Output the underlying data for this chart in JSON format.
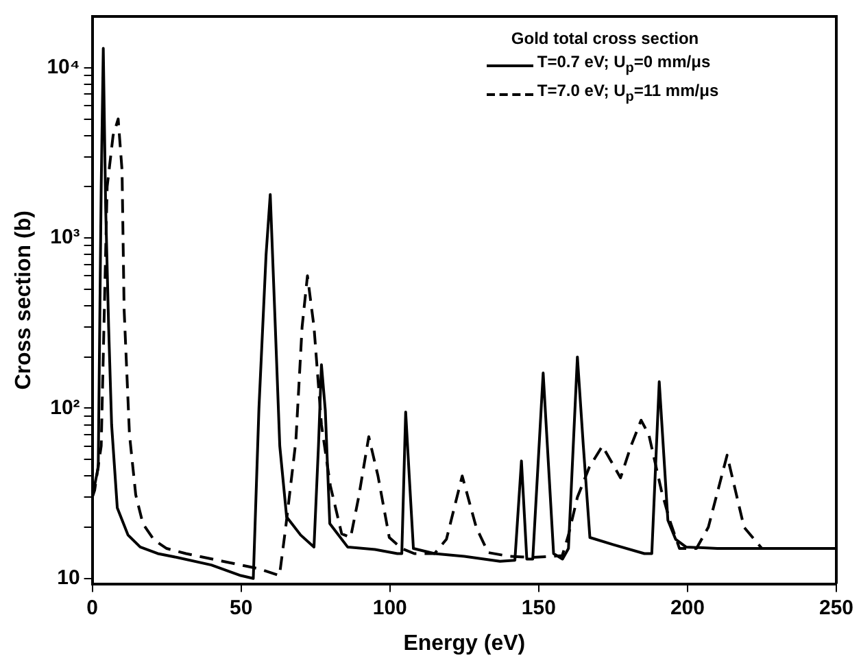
{
  "chart_data": {
    "type": "line",
    "xlabel": "Energy (eV)",
    "ylabel": "Cross section (b)",
    "legend_title": "Gold total cross section",
    "legend": "top right",
    "log": "y",
    "grid": false,
    "marker": "none",
    "xlim": [
      0,
      250
    ],
    "xticks": [
      0,
      50,
      100,
      150,
      200,
      250
    ],
    "ylim": [
      9.3,
      20000
    ],
    "yticks": [
      {
        "value": 10,
        "label": "10"
      },
      {
        "value": 20,
        "label": null
      },
      {
        "value": 30,
        "label": null
      },
      {
        "value": 40,
        "label": null
      },
      {
        "value": 50,
        "label": null
      },
      {
        "value": 60,
        "label": null
      },
      {
        "value": 70,
        "label": null
      },
      {
        "value": 80,
        "label": null
      },
      {
        "value": 90,
        "label": null
      },
      {
        "value": 100,
        "label": "10²"
      },
      {
        "value": 200,
        "label": null
      },
      {
        "value": 300,
        "label": null
      },
      {
        "value": 400,
        "label": null
      },
      {
        "value": 500,
        "label": null
      },
      {
        "value": 600,
        "label": null
      },
      {
        "value": 700,
        "label": null
      },
      {
        "value": 800,
        "label": null
      },
      {
        "value": 900,
        "label": null
      },
      {
        "value": 1000,
        "label": "10³"
      },
      {
        "value": 2000,
        "label": null
      },
      {
        "value": 3000,
        "label": null
      },
      {
        "value": 4000,
        "label": null
      },
      {
        "value": 5000,
        "label": null
      },
      {
        "value": 6000,
        "label": null
      },
      {
        "value": 7000,
        "label": null
      },
      {
        "value": 8000,
        "label": null
      },
      {
        "value": 9000,
        "label": null
      },
      {
        "value": 10000,
        "label": "10⁴"
      }
    ],
    "series": [
      {
        "name": "T=0.7 eV; U$_{p}$=0 mm/μs",
        "color": "#000000",
        "line_style": "solid",
        "x": [
          0,
          2,
          3,
          3.7,
          4.5,
          5.5,
          6.5,
          8.4,
          12,
          16.1,
          22,
          28.4,
          40,
          49.9,
          54.1,
          56,
          58.4,
          59.8,
          61.5,
          63,
          65.3,
          70,
          74.5,
          76,
          77,
          78.3,
          79.8,
          85.8,
          95,
          102.5,
          104,
          105.3,
          106.5,
          107.9,
          115,
          125,
          137,
          142,
          144.2,
          146,
          148,
          151.5,
          153.5,
          155,
          158,
          160,
          163,
          165,
          167.2,
          175,
          185.5,
          188,
          190.5,
          193.4,
          196,
          199.5,
          210,
          250
        ],
        "values": [
          30,
          45,
          2000,
          13000,
          1500,
          300,
          80,
          26,
          18,
          15.3,
          14,
          13.3,
          12,
          10.4,
          10,
          100,
          800,
          1800,
          300,
          60,
          23,
          18,
          15.3,
          60,
          180,
          97,
          21,
          15.3,
          14.8,
          14,
          14,
          95,
          40,
          15,
          14,
          13.5,
          12.6,
          12.8,
          49,
          13,
          13,
          161,
          40,
          14,
          13,
          15,
          200,
          60,
          17.4,
          15.8,
          14,
          14,
          143,
          22,
          17,
          15.3,
          15,
          15
        ]
      },
      {
        "name": "T=7.0 eV; U$_{p}$=11 mm/μs",
        "color": "#000000",
        "line_style": "dashed",
        "x": [
          0,
          0.8,
          3,
          5,
          7,
          8.7,
          10,
          10.7,
          12.5,
          14.6,
          17,
          20.8,
          25,
          31.5,
          45,
          56.1,
          60,
          62.9,
          65,
          68.4,
          70.5,
          72.3,
          74.5,
          77,
          80,
          83.8,
          86.8,
          89.5,
          92.9,
          96,
          99.8,
          104,
          108.2,
          115,
          119,
          124.3,
          129,
          133,
          140,
          148,
          157.9,
          160,
          163,
          167,
          171.4,
          177.5,
          181,
          184.4,
          187,
          191.2,
          194,
          197.3,
          203,
          207,
          213.3,
          219,
          225,
          250
        ],
        "values": [
          30,
          33,
          60,
          2000,
          4000,
          5000,
          2500,
          380,
          70,
          31,
          21,
          16.8,
          15,
          14,
          12.5,
          11.4,
          10.8,
          10.4,
          20,
          64,
          300,
          600,
          300,
          80,
          35,
          18.3,
          17.4,
          30,
          68,
          40,
          17.4,
          15,
          14,
          14,
          17,
          40,
          20,
          14.2,
          13.5,
          13.3,
          13.6,
          18,
          30,
          45,
          60,
          39,
          60,
          85,
          70,
          33,
          22,
          15,
          15,
          20,
          53,
          20,
          15,
          15
        ]
      }
    ]
  }
}
